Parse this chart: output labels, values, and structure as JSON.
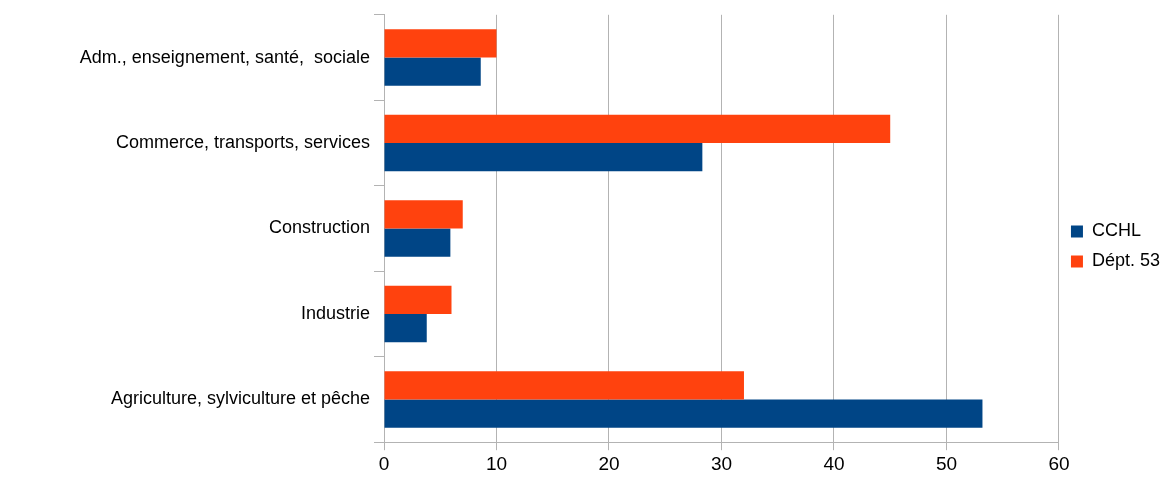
{
  "chart_data": {
    "type": "bar",
    "orientation": "horizontal",
    "categories": [
      "Adm., enseignement, santé,  sociale",
      "Commerce, transports, services",
      "Construction",
      "Industrie",
      "Agriculture, sylviculture et pêche"
    ],
    "series": [
      {
        "name": "CCHL",
        "color": "#004586",
        "values": [
          8.6,
          28.3,
          5.9,
          3.8,
          53.2
        ]
      },
      {
        "name": "Dépt. 53",
        "color": "#ff420e",
        "values": [
          10,
          45,
          7,
          6,
          32
        ]
      }
    ],
    "xlim": [
      0,
      60
    ],
    "xticks": [
      0,
      10,
      20,
      30,
      40,
      50,
      60
    ],
    "grid": "x",
    "legend": "right"
  }
}
